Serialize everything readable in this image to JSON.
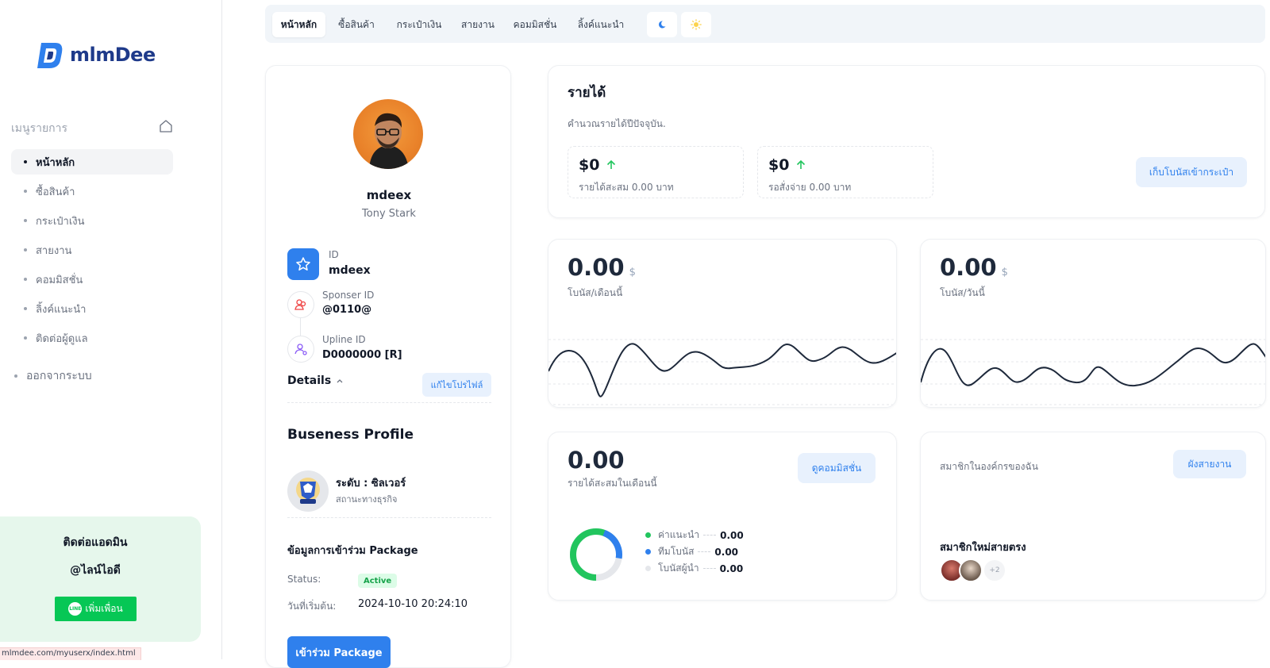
{
  "brand": {
    "name": "mlmDee"
  },
  "sidebar": {
    "menu_title": "เมนูรายการ",
    "items": [
      {
        "label": "หน้าหลัก",
        "active": true
      },
      {
        "label": "ซื้อสินค้า",
        "active": false
      },
      {
        "label": "กระเป๋าเงิน",
        "active": false
      },
      {
        "label": "สายงาน",
        "active": false
      },
      {
        "label": "คอมมิสชั่น",
        "active": false
      },
      {
        "label": "ลิ้งค์แนะนำ",
        "active": false
      },
      {
        "label": "ติดต่อผู้ดูแล",
        "active": false
      }
    ],
    "logout": "ออกจากระบบ",
    "contact": {
      "title": "ติดต่อแอดมิน",
      "line_id": "@ไลน์ไอดี",
      "add_friend": "เพิ่มเพื่อน",
      "line_badge": "LINE"
    }
  },
  "status_url": "mlmdee.com/myuserx/index.html",
  "tabs": [
    {
      "label": "หน้าหลัก",
      "active": true
    },
    {
      "label": "ซื้อสินค้า"
    },
    {
      "label": "กระเป๋าเงิน"
    },
    {
      "label": "สายงาน"
    },
    {
      "label": "คอมมิสชั่น"
    },
    {
      "label": "ลิ้งค์แนะนำ"
    }
  ],
  "theme_icons": {
    "dark": "moon-icon",
    "light": "sun-icon"
  },
  "profile": {
    "username": "mdeex",
    "fullname": "Tony Stark",
    "id_label": "ID",
    "id_value": "mdeex",
    "sponsor_label": "Sponser ID",
    "sponsor_value": "@0110@",
    "upline_label": "Upline ID",
    "upline_value": "D0000000 [R]",
    "details_label": "Details",
    "edit_button": "แก้ไขโปรไฟล์",
    "business_title": "Buseness Profile",
    "level": "ระดับ : ซิลเวอร์",
    "business_status": "สถานะทางธุรกิจ",
    "package_title": "ข้อมูลการเข้าร่วม Package",
    "status_label": "Status:",
    "status_value": "Active",
    "start_label": "วันที่เริ่มต้น:",
    "start_value": "2024-10-10 20:24:10",
    "join_button": "เข้าร่วม Package"
  },
  "income": {
    "title": "รายได้",
    "subtitle": "คำนวณรายได้ปีปัจจุบัน.",
    "accumulated_value": "$0",
    "accumulated_label": "รายได้สะสม 0.00 บาท",
    "pending_value": "$0",
    "pending_label": "รอสั่งจ่าย 0.00 บาท",
    "collect_button": "เก็บโบนัสเข้ากระเป๋า"
  },
  "bonus_month": {
    "value": "0.00",
    "unit": "$",
    "label": "โบนัส/เดือนนี้"
  },
  "bonus_day": {
    "value": "0.00",
    "unit": "$",
    "label": "โบนัส/วันนี้"
  },
  "commission": {
    "value": "0.00",
    "label": "รายได้สะสมในเดือนนี้",
    "button": "ดูคอมมิสชั่น",
    "legend": [
      {
        "label": "ค่าแนะนำ",
        "value": "0.00",
        "color": "#22c55e"
      },
      {
        "label": "ทีมโบนัส",
        "value": "0.00",
        "color": "#2f80ed"
      },
      {
        "label": "โบนัสผู้นำ",
        "value": "0.00",
        "color": "#e5e7eb"
      }
    ]
  },
  "members": {
    "title": "สมาชิกในองค์กรของฉัน",
    "tree_button": "ผังสายงาน",
    "new_members_title": "สมาชิกใหม่สายตรง",
    "more_count": "+2"
  },
  "colors": {
    "primary": "#2f80ed",
    "success": "#22c55e",
    "line_green": "#06c755",
    "brand": "#1e3a8a"
  }
}
